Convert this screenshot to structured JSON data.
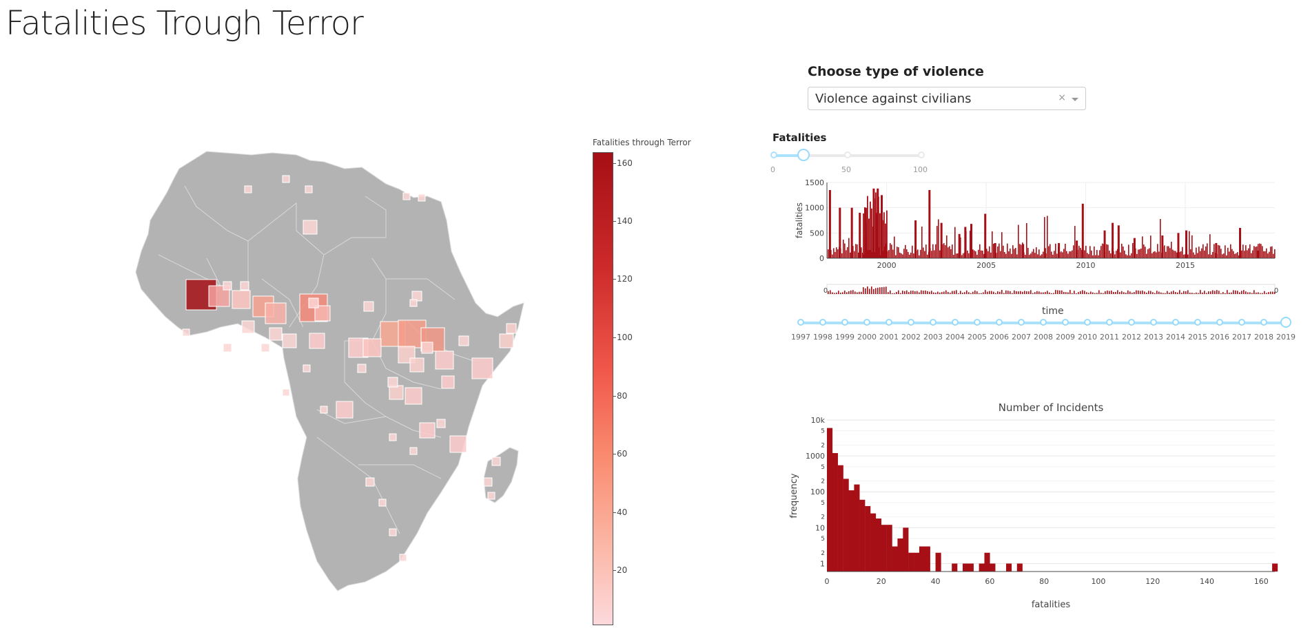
{
  "page": {
    "title": "Fatalities Trough Terror"
  },
  "map": {
    "land_color": "#b3b3b3",
    "border_color": "#d9d9d9",
    "colorbar": {
      "title": "Fatalities through Terror",
      "ticks": [
        "160",
        "140",
        "120",
        "100",
        "80",
        "60",
        "40",
        "20"
      ],
      "colors": [
        "#fcd9dc",
        "#fbb4a2",
        "#f98a6e",
        "#f0574a",
        "#cc2a2a",
        "#a50f15"
      ]
    }
  },
  "controls": {
    "violence_label": "Choose type of violence",
    "violence_selected": "Violence against civilians",
    "clear_symbol": "×",
    "fatalities_label": "Fatalities",
    "fatalities_slider": {
      "marks": [
        "0",
        "50",
        "100"
      ],
      "value": 20,
      "max": 100
    },
    "time_label": "time",
    "time_slider": {
      "years": [
        "1997",
        "1998",
        "1999",
        "2000",
        "2001",
        "2002",
        "2003",
        "2004",
        "2005",
        "2006",
        "2007",
        "2008",
        "2009",
        "2010",
        "2011",
        "2012",
        "2013",
        "2014",
        "2015",
        "2016",
        "2017",
        "2018",
        "2019"
      ],
      "selected_range": [
        "1997",
        "2019"
      ]
    }
  },
  "chart_data": [
    {
      "type": "bar",
      "ylabel": "fatalities",
      "xlabel": "",
      "ylim": [
        0,
        1500
      ],
      "y_ticks": [
        "0",
        "500",
        "1000",
        "1500"
      ],
      "x_ticks": [
        "2000",
        "2005",
        "2010",
        "2015"
      ],
      "range_slider_markers": [
        "0",
        "0"
      ],
      "bar_color": "#a50f15",
      "x_range": [
        1997.0,
        2019.5
      ],
      "spikes": [
        {
          "x": 1997.1,
          "y": 1350
        },
        {
          "x": 1997.6,
          "y": 1000
        },
        {
          "x": 1998.2,
          "y": 1000
        },
        {
          "x": 1998.6,
          "y": 900
        },
        {
          "x": 1998.9,
          "y": 1000
        },
        {
          "x": 1999.3,
          "y": 1380
        },
        {
          "x": 1999.5,
          "y": 1380
        },
        {
          "x": 1999.7,
          "y": 1250
        },
        {
          "x": 2001.4,
          "y": 750
        },
        {
          "x": 2002.1,
          "y": 1350
        },
        {
          "x": 2002.7,
          "y": 700
        },
        {
          "x": 2003.6,
          "y": 480
        },
        {
          "x": 2003.9,
          "y": 620
        },
        {
          "x": 2004.2,
          "y": 680
        },
        {
          "x": 2004.9,
          "y": 880
        },
        {
          "x": 2005.4,
          "y": 300
        },
        {
          "x": 2006.8,
          "y": 280
        },
        {
          "x": 2007.9,
          "y": 200
        },
        {
          "x": 2008.6,
          "y": 300
        },
        {
          "x": 2009.5,
          "y": 350
        },
        {
          "x": 2009.8,
          "y": 1080
        },
        {
          "x": 2010.9,
          "y": 550
        },
        {
          "x": 2011.3,
          "y": 700
        },
        {
          "x": 2011.6,
          "y": 650
        },
        {
          "x": 2012.4,
          "y": 400
        },
        {
          "x": 2013.8,
          "y": 450
        },
        {
          "x": 2014.6,
          "y": 500
        },
        {
          "x": 2015.0,
          "y": 550
        },
        {
          "x": 2016.5,
          "y": 300
        },
        {
          "x": 2017.7,
          "y": 600
        },
        {
          "x": 2018.6,
          "y": 150
        }
      ]
    },
    {
      "type": "bar",
      "title": "Number of Incidents",
      "xlabel": "fatalities",
      "ylabel": "frequency",
      "y_scale": "log",
      "ylim": [
        0.6,
        10000
      ],
      "y_ticks": [
        "10k",
        "1000",
        "100",
        "10",
        "1"
      ],
      "y_minor_ticks": [
        "5",
        "2"
      ],
      "x_ticks": [
        "0",
        "20",
        "40",
        "60",
        "80",
        "100",
        "120",
        "140",
        "160"
      ],
      "xlim": [
        0,
        165
      ],
      "bin_width": 2,
      "bar_color": "#a50f15",
      "bins": [
        {
          "x": 0,
          "y": 6000
        },
        {
          "x": 2,
          "y": 1200
        },
        {
          "x": 4,
          "y": 550
        },
        {
          "x": 6,
          "y": 230
        },
        {
          "x": 8,
          "y": 110
        },
        {
          "x": 10,
          "y": 160
        },
        {
          "x": 12,
          "y": 60
        },
        {
          "x": 14,
          "y": 40
        },
        {
          "x": 16,
          "y": 25
        },
        {
          "x": 18,
          "y": 18
        },
        {
          "x": 20,
          "y": 12
        },
        {
          "x": 22,
          "y": 12
        },
        {
          "x": 24,
          "y": 3
        },
        {
          "x": 26,
          "y": 5
        },
        {
          "x": 28,
          "y": 10
        },
        {
          "x": 30,
          "y": 2
        },
        {
          "x": 32,
          "y": 2
        },
        {
          "x": 34,
          "y": 3
        },
        {
          "x": 36,
          "y": 3
        },
        {
          "x": 40,
          "y": 2
        },
        {
          "x": 46,
          "y": 1
        },
        {
          "x": 50,
          "y": 1
        },
        {
          "x": 52,
          "y": 1
        },
        {
          "x": 56,
          "y": 1
        },
        {
          "x": 58,
          "y": 2
        },
        {
          "x": 60,
          "y": 1
        },
        {
          "x": 66,
          "y": 1
        },
        {
          "x": 70,
          "y": 1
        },
        {
          "x": 164,
          "y": 1
        }
      ]
    }
  ]
}
